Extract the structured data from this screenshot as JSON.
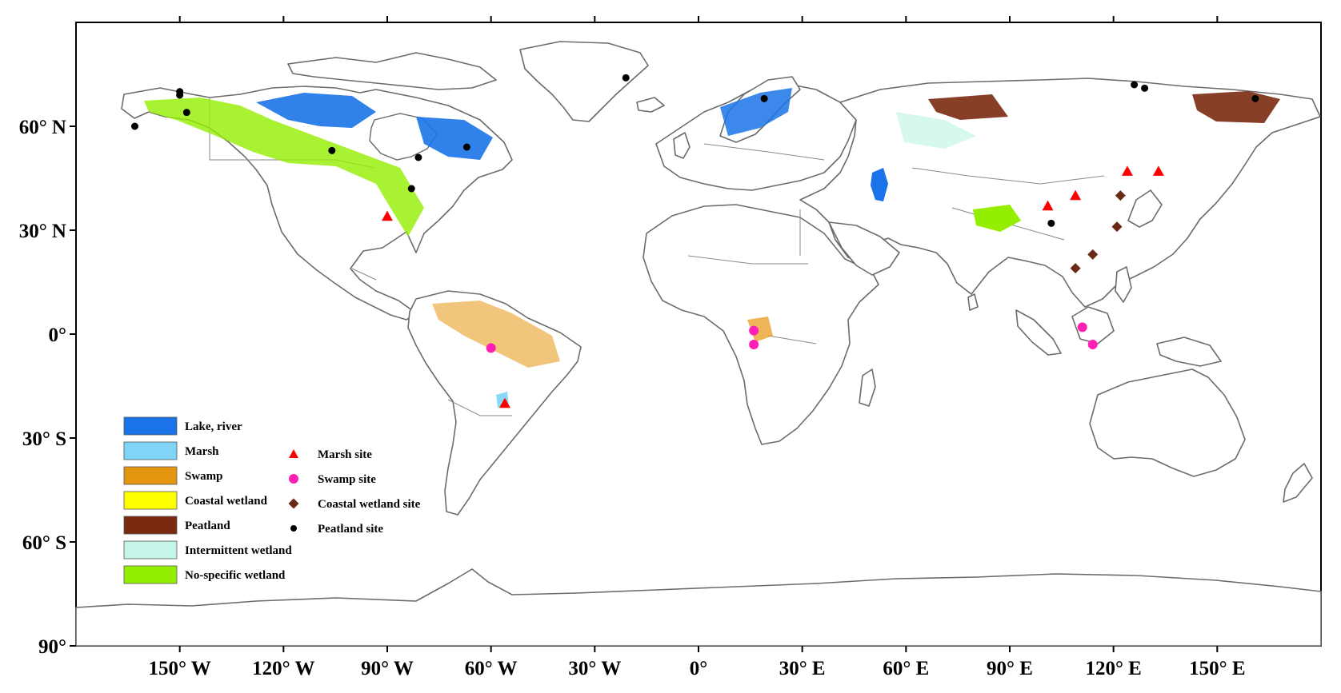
{
  "map": {
    "longitude_labels": [
      "150° W",
      "120° W",
      "90° W",
      "60° W",
      "30° W",
      "0°",
      "30° E",
      "60° E",
      "90° E",
      "120° E",
      "150° E"
    ],
    "latitude_labels": [
      "60° N",
      "30° N",
      "0°",
      "30° S",
      "60° S",
      "90°"
    ]
  },
  "legend": {
    "classes": [
      {
        "label": "Lake, river",
        "color": "#1a73e8"
      },
      {
        "label": "Marsh",
        "color": "#7fd4f8"
      },
      {
        "label": "Swamp",
        "color": "#e5960f"
      },
      {
        "label": "Coastal wetland",
        "color": "#ffff00"
      },
      {
        "label": "Peatland",
        "color": "#7a2a10"
      },
      {
        "label": "Intermittent wetland",
        "color": "#c4f5e8"
      },
      {
        "label": "No-specific wetland",
        "color": "#94ee00"
      }
    ],
    "sites": [
      {
        "label": "Marsh site",
        "symbol": "triangle",
        "color": "#ff0000"
      },
      {
        "label": "Swamp site",
        "symbol": "circle",
        "color": "#ff1fb4"
      },
      {
        "label": "Coastal wetland site",
        "symbol": "diamond",
        "color": "#6b2a15"
      },
      {
        "label": "Peatland site",
        "symbol": "dot",
        "color": "#000000"
      }
    ]
  },
  "sites": {
    "marsh": [
      [
        -90,
        34
      ],
      [
        -56,
        -20
      ],
      [
        101,
        37
      ],
      [
        109,
        40
      ],
      [
        124,
        47
      ],
      [
        133,
        47
      ]
    ],
    "swamp": [
      [
        -60,
        -4
      ],
      [
        16,
        1
      ],
      [
        16,
        -3
      ],
      [
        111,
        2
      ],
      [
        114,
        -3
      ]
    ],
    "coastal": [
      [
        122,
        40
      ],
      [
        121,
        31
      ],
      [
        114,
        23
      ],
      [
        109,
        19
      ]
    ],
    "peatland": [
      [
        -163,
        60
      ],
      [
        -150,
        69
      ],
      [
        -150,
        70
      ],
      [
        -148,
        64
      ],
      [
        -106,
        53
      ],
      [
        -81,
        51
      ],
      [
        -67,
        54
      ],
      [
        -83,
        42
      ],
      [
        -21,
        74
      ],
      [
        19,
        68
      ],
      [
        102,
        32
      ],
      [
        126,
        72
      ],
      [
        129,
        71
      ],
      [
        161,
        68
      ]
    ]
  }
}
